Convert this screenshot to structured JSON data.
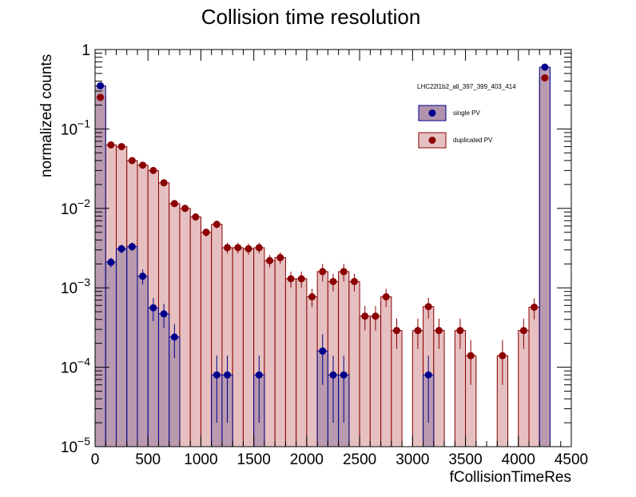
{
  "chart_data": {
    "type": "bar",
    "title": "Collision time resolution",
    "xlabel": "fCollisionTimeRes",
    "ylabel": "normalized counts",
    "xlim": [
      0,
      4500
    ],
    "ylim": [
      1e-05,
      1
    ],
    "yscale": "log",
    "bin_width": 100,
    "x_ticks": [
      0,
      500,
      1000,
      1500,
      2000,
      2500,
      3000,
      3500,
      4000,
      4500
    ],
    "x_tick_labels": [
      "0",
      "500",
      "1000",
      "1500",
      "2000",
      "2500",
      "3000",
      "3500",
      "4000",
      "4500"
    ],
    "y_ticks": [
      {
        "value": 1,
        "base": "1",
        "exp": ""
      },
      {
        "value": 0.1,
        "base": "10",
        "exp": "−1"
      },
      {
        "value": 0.01,
        "base": "10",
        "exp": "−2"
      },
      {
        "value": 0.001,
        "base": "10",
        "exp": "−3"
      },
      {
        "value": 0.0001,
        "base": "10",
        "exp": "−4"
      },
      {
        "value": 1e-05,
        "base": "10",
        "exp": "−5"
      }
    ],
    "legend": {
      "header": "LHC22l1b2_all_397_399_403_414",
      "placement": "top-right",
      "entries": [
        "single PV",
        "duplicated PV"
      ]
    },
    "series": [
      {
        "name": "single PV",
        "fill": "#b093ab",
        "line": "#00008b",
        "marker": "#00008b",
        "points": [
          {
            "x": 50,
            "y": 0.35,
            "err": 0.02
          },
          {
            "x": 150,
            "y": 0.0021,
            "err": 0.0003
          },
          {
            "x": 250,
            "y": 0.0031,
            "err": 0.0004
          },
          {
            "x": 350,
            "y": 0.0033,
            "err": 0.0004
          },
          {
            "x": 450,
            "y": 0.0014,
            "err": 0.0003
          },
          {
            "x": 550,
            "y": 0.00056,
            "err": 0.00018
          },
          {
            "x": 650,
            "y": 0.00047,
            "err": 0.00016
          },
          {
            "x": 750,
            "y": 0.00024,
            "err": 0.00011
          },
          {
            "x": 1150,
            "y": 8e-05,
            "err": 6e-05
          },
          {
            "x": 1250,
            "y": 8e-05,
            "err": 6e-05
          },
          {
            "x": 1550,
            "y": 8e-05,
            "err": 6e-05
          },
          {
            "x": 2150,
            "y": 0.00016,
            "err": 0.0001
          },
          {
            "x": 2250,
            "y": 8e-05,
            "err": 6e-05
          },
          {
            "x": 2350,
            "y": 8e-05,
            "err": 6e-05
          },
          {
            "x": 3150,
            "y": 8e-05,
            "err": 6e-05
          },
          {
            "x": 4250,
            "y": 0.6,
            "err": 0.03
          }
        ]
      },
      {
        "name": "duplicated PV",
        "fill": "#e6c0c0",
        "line": "#8b0000",
        "marker": "#8b0000",
        "points": [
          {
            "x": 50,
            "y": 0.25,
            "err": 0.01
          },
          {
            "x": 150,
            "y": 0.063,
            "err": 0.003
          },
          {
            "x": 250,
            "y": 0.06,
            "err": 0.003
          },
          {
            "x": 350,
            "y": 0.04,
            "err": 0.002
          },
          {
            "x": 450,
            "y": 0.035,
            "err": 0.002
          },
          {
            "x": 550,
            "y": 0.03,
            "err": 0.002
          },
          {
            "x": 650,
            "y": 0.021,
            "err": 0.0015
          },
          {
            "x": 750,
            "y": 0.0115,
            "err": 0.001
          },
          {
            "x": 850,
            "y": 0.01,
            "err": 0.001
          },
          {
            "x": 950,
            "y": 0.0078,
            "err": 0.0008
          },
          {
            "x": 1050,
            "y": 0.005,
            "err": 0.0006
          },
          {
            "x": 1150,
            "y": 0.0063,
            "err": 0.0007
          },
          {
            "x": 1250,
            "y": 0.0032,
            "err": 0.0005
          },
          {
            "x": 1350,
            "y": 0.0032,
            "err": 0.0005
          },
          {
            "x": 1450,
            "y": 0.0031,
            "err": 0.0005
          },
          {
            "x": 1550,
            "y": 0.0032,
            "err": 0.0005
          },
          {
            "x": 1650,
            "y": 0.0022,
            "err": 0.0004
          },
          {
            "x": 1750,
            "y": 0.0024,
            "err": 0.0004
          },
          {
            "x": 1850,
            "y": 0.0013,
            "err": 0.0003
          },
          {
            "x": 1950,
            "y": 0.0013,
            "err": 0.0003
          },
          {
            "x": 2050,
            "y": 0.00077,
            "err": 0.0002
          },
          {
            "x": 2150,
            "y": 0.0016,
            "err": 0.0004
          },
          {
            "x": 2250,
            "y": 0.0012,
            "err": 0.0003
          },
          {
            "x": 2350,
            "y": 0.0016,
            "err": 0.0004
          },
          {
            "x": 2450,
            "y": 0.0012,
            "err": 0.0003
          },
          {
            "x": 2550,
            "y": 0.00044,
            "err": 0.00015
          },
          {
            "x": 2650,
            "y": 0.00044,
            "err": 0.00015
          },
          {
            "x": 2750,
            "y": 0.00077,
            "err": 0.0002
          },
          {
            "x": 2850,
            "y": 0.00029,
            "err": 0.00012
          },
          {
            "x": 3050,
            "y": 0.00029,
            "err": 0.00012
          },
          {
            "x": 3150,
            "y": 0.00058,
            "err": 0.00017
          },
          {
            "x": 3250,
            "y": 0.00029,
            "err": 0.00012
          },
          {
            "x": 3450,
            "y": 0.00029,
            "err": 0.00012
          },
          {
            "x": 3550,
            "y": 0.00014,
            "err": 8e-05
          },
          {
            "x": 3850,
            "y": 0.00014,
            "err": 8e-05
          },
          {
            "x": 4050,
            "y": 0.00029,
            "err": 0.00012
          },
          {
            "x": 4150,
            "y": 0.00057,
            "err": 0.00017
          },
          {
            "x": 4250,
            "y": 0.44,
            "err": 0.02
          }
        ]
      }
    ]
  }
}
